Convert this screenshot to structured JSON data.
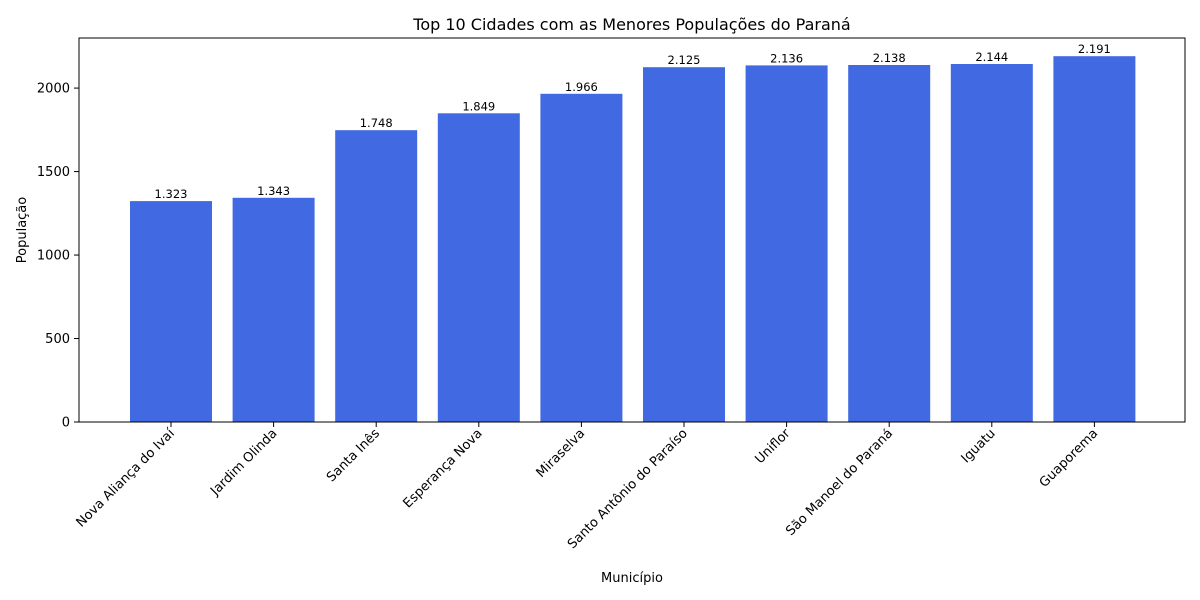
{
  "chart_data": {
    "type": "bar",
    "title": "Top 10 Cidades com as Menores Populações do Paraná",
    "xlabel": "Município",
    "ylabel": "População",
    "categories": [
      "Nova Aliança do Ivaí",
      "Jardim Olinda",
      "Santa Inês",
      "Esperança Nova",
      "Miraselva",
      "Santo Antônio do Paraíso",
      "Uniflor",
      "São Manoel do Paraná",
      "Iguatu",
      "Guaporema"
    ],
    "values": [
      1323,
      1343,
      1748,
      1849,
      1966,
      2125,
      2136,
      2138,
      2144,
      2191
    ],
    "value_labels": [
      "1.323",
      "1.343",
      "1.748",
      "1.849",
      "1.966",
      "2.125",
      "2.136",
      "2.138",
      "2.144",
      "2.191"
    ],
    "yticks": [
      0,
      500,
      1000,
      1500,
      2000
    ],
    "ylim": [
      0,
      2300
    ],
    "grid": false,
    "bar_color": "#4169e1"
  }
}
